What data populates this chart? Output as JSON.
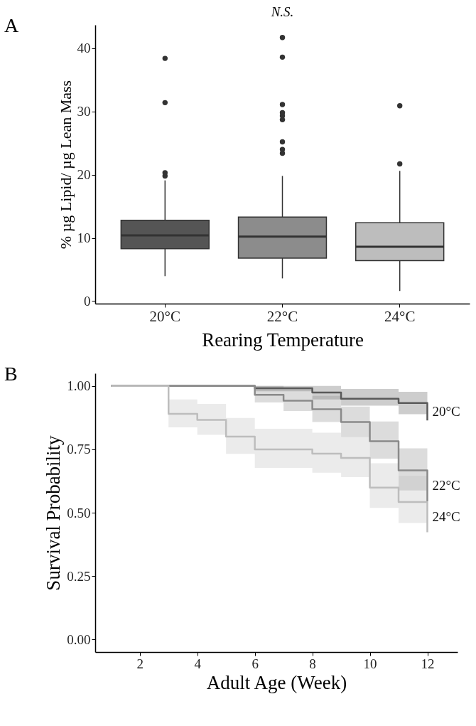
{
  "chart_data": [
    {
      "type": "box",
      "categories": [
        "20°C",
        "22°C",
        "24°C"
      ],
      "colors": [
        "#555555",
        "#8c8c8c",
        "#bdbdbd"
      ],
      "xlabel": "Rearing Temperature",
      "ylabel": "% µg Lipid/ µg Lean Mass",
      "ylim": [
        -0.4,
        43.7
      ],
      "yticks": [
        0,
        10,
        20,
        30,
        40
      ],
      "annotations": [
        "A",
        "N.S."
      ],
      "boxes": [
        {
          "low": 3.95,
          "q1": 8.3,
          "median": 10.4,
          "q3": 12.8,
          "high": 19.1,
          "outliers": [
            19.8,
            20.3,
            31.4,
            38.4
          ]
        },
        {
          "low": 3.6,
          "q1": 6.8,
          "median": 10.2,
          "q3": 13.3,
          "high": 19.8,
          "outliers": [
            23.4,
            24.0,
            25.2,
            28.7,
            29.3,
            29.8,
            31.1,
            38.6,
            41.7
          ]
        },
        {
          "low": 1.6,
          "q1": 6.4,
          "median": 8.6,
          "q3": 12.4,
          "high": 20.6,
          "outliers": [
            21.7,
            30.9
          ]
        }
      ]
    },
    {
      "type": "step",
      "xlabel": "Adult Age (Week)",
      "ylabel": "Survival Probability",
      "xlim": [
        0.45,
        13.05
      ],
      "xticks": [
        2,
        4,
        6,
        8,
        10,
        12
      ],
      "ylim": [
        -0.05,
        1.05
      ],
      "yticks": [
        {
          "value": 0,
          "label": "0.00"
        },
        {
          "value": 0.25,
          "label": "0.25"
        },
        {
          "value": 0.5,
          "label": "0.50"
        },
        {
          "value": 0.75,
          "label": "0.75"
        },
        {
          "value": 1,
          "label": "1.00"
        }
      ],
      "annotations": [
        "B"
      ],
      "series": [
        {
          "name": "20°C",
          "color": "#5a5a5a",
          "x": [
            1,
            6,
            8,
            9,
            11,
            12
          ],
          "values": [
            1,
            0.991,
            0.974,
            0.95,
            0.933,
            0.864
          ],
          "lower": [
            1,
            0.979,
            0.947,
            0.922,
            0.889,
            0.889
          ],
          "upper": [
            1,
            1,
            1,
            0.988,
            0.977,
            0.977
          ]
        },
        {
          "name": "22°C",
          "color": "#8a8a8a",
          "x": [
            1,
            6,
            7,
            8,
            9,
            10,
            11,
            12
          ],
          "values": [
            1,
            0.965,
            0.942,
            0.908,
            0.858,
            0.782,
            0.667,
            0.545
          ],
          "lower": [
            1,
            0.935,
            0.901,
            0.858,
            0.798,
            0.713,
            0.588,
            0.588
          ],
          "upper": [
            1,
            1,
            0.988,
            0.961,
            0.919,
            0.86,
            0.754,
            0.754
          ]
        },
        {
          "name": "24°C",
          "color": "#bdbdbd",
          "x": [
            1,
            3,
            4,
            5,
            6,
            8,
            9,
            10,
            11,
            12
          ],
          "values": [
            1,
            0.89,
            0.866,
            0.8,
            0.75,
            0.733,
            0.716,
            0.599,
            0.542,
            0.423
          ],
          "lower": [
            1,
            0.837,
            0.807,
            0.732,
            0.677,
            0.658,
            0.64,
            0.519,
            0.459,
            0.459
          ],
          "upper": [
            1,
            0.947,
            0.929,
            0.874,
            0.831,
            0.816,
            0.798,
            0.695,
            0.645,
            0.645
          ]
        }
      ]
    }
  ]
}
